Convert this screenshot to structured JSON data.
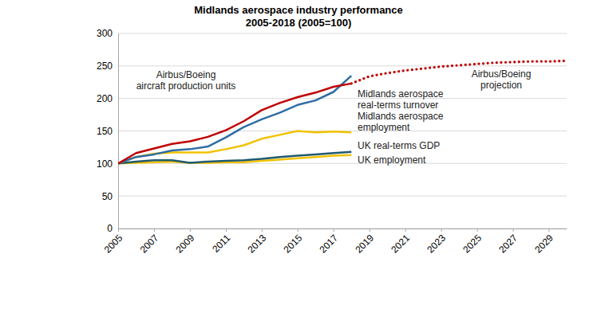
{
  "chart_data": {
    "type": "line",
    "title": "Midlands aerospace industry performance",
    "subtitle": "2005-2018 (2005=100)",
    "x": [
      2005,
      2006,
      2007,
      2008,
      2009,
      2010,
      2011,
      2012,
      2013,
      2014,
      2015,
      2016,
      2017,
      2018,
      2019,
      2020,
      2021,
      2022,
      2023,
      2024,
      2025,
      2026,
      2027,
      2028,
      2029,
      2030
    ],
    "xlim": [
      2005,
      2030
    ],
    "xticks": [
      2005,
      2007,
      2009,
      2011,
      2013,
      2015,
      2017,
      2019,
      2021,
      2023,
      2025,
      2027,
      2029
    ],
    "ylim": [
      0,
      300
    ],
    "yticks": [
      0,
      50,
      100,
      150,
      200,
      250,
      300
    ],
    "grid": true,
    "series": [
      {
        "name": "Airbus/Boeing aircraft production units",
        "color": "#c00000",
        "line_style": "solid",
        "values": [
          100,
          116,
          123,
          130,
          134,
          141,
          151,
          165,
          182,
          193,
          202,
          209,
          218,
          223,
          null,
          null,
          null,
          null,
          null,
          null,
          null,
          null,
          null,
          null,
          null,
          null
        ]
      },
      {
        "name": "Midlands aerospace real-terms turnover",
        "color": "#2e6da4",
        "line_style": "solid",
        "values": [
          100,
          110,
          114,
          120,
          122,
          126,
          140,
          156,
          168,
          178,
          190,
          197,
          210,
          235,
          null,
          null,
          null,
          null,
          null,
          null,
          null,
          null,
          null,
          null,
          null,
          null
        ]
      },
      {
        "name": "Midlands aerospace employment",
        "color": "#f2c200",
        "line_style": "solid",
        "values": [
          100,
          110,
          115,
          117,
          117,
          117,
          122,
          128,
          138,
          144,
          150,
          148,
          149,
          148,
          null,
          null,
          null,
          null,
          null,
          null,
          null,
          null,
          null,
          null,
          null,
          null
        ]
      },
      {
        "name": "UK real-terms GDP",
        "color": "#1f5a70",
        "line_style": "solid",
        "values": [
          100,
          103,
          105,
          105,
          101,
          103,
          104,
          105,
          107,
          110,
          112,
          114,
          116,
          118,
          null,
          null,
          null,
          null,
          null,
          null,
          null,
          null,
          null,
          null,
          null,
          null
        ]
      },
      {
        "name": "UK employment",
        "color": "#f2c200",
        "line_style": "solid",
        "values": [
          100,
          101,
          102,
          103,
          101,
          101,
          102,
          102,
          104,
          106,
          108,
          110,
          112,
          113,
          null,
          null,
          null,
          null,
          null,
          null,
          null,
          null,
          null,
          null,
          null,
          null
        ]
      },
      {
        "name": "Airbus/Boeing projection",
        "color": "#c00000",
        "line_style": "dotted",
        "values": [
          null,
          null,
          null,
          null,
          null,
          null,
          null,
          null,
          null,
          null,
          null,
          null,
          null,
          223,
          234,
          239,
          243,
          246,
          249,
          251,
          253,
          255,
          256,
          257,
          257,
          258
        ]
      }
    ]
  }
}
